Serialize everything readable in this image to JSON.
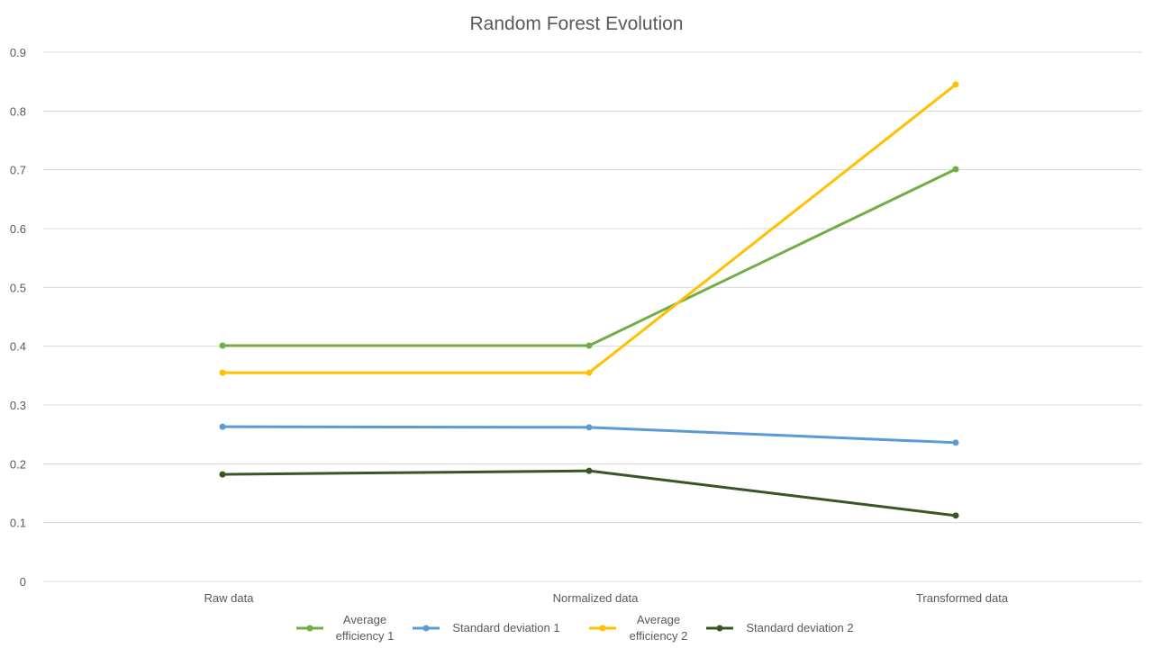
{
  "chart_data": {
    "type": "line",
    "title": "Random Forest Evolution",
    "xlabel": "",
    "ylabel": "",
    "categories": [
      "Raw data",
      "Normalized data",
      "Transformed data"
    ],
    "ylim": [
      0,
      0.9
    ],
    "yticks": [
      0,
      0.1,
      0.2,
      0.3,
      0.4,
      0.5,
      0.6,
      0.7,
      0.8,
      0.9
    ],
    "ytick_labels": [
      "0",
      "0.1",
      "0.2",
      "0.3",
      "0.4",
      "0.5",
      "0.6",
      "0.7",
      "0.8",
      "0.9"
    ],
    "grid": true,
    "legend_position": "bottom",
    "series": [
      {
        "key": "avg_eff_1",
        "name": "Average efficiency 1",
        "legend_lines": [
          "Average",
          "efficiency 1"
        ],
        "color": "#70ad47",
        "values": [
          0.401,
          0.401,
          0.701
        ]
      },
      {
        "key": "std_dev_1",
        "name": "Standard deviation 1",
        "legend_lines": [
          "Standard deviation 1"
        ],
        "color": "#5b9bd5",
        "values": [
          0.263,
          0.262,
          0.236
        ]
      },
      {
        "key": "avg_eff_2",
        "name": "Average efficiency 2",
        "legend_lines": [
          "Average",
          "efficiency 2"
        ],
        "color": "#ffc000",
        "values": [
          0.355,
          0.355,
          0.845
        ]
      },
      {
        "key": "std_dev_2",
        "name": "Standard deviation 2",
        "legend_lines": [
          "Standard deviation 2"
        ],
        "color": "#375623",
        "values": [
          0.182,
          0.188,
          0.112
        ]
      }
    ]
  }
}
